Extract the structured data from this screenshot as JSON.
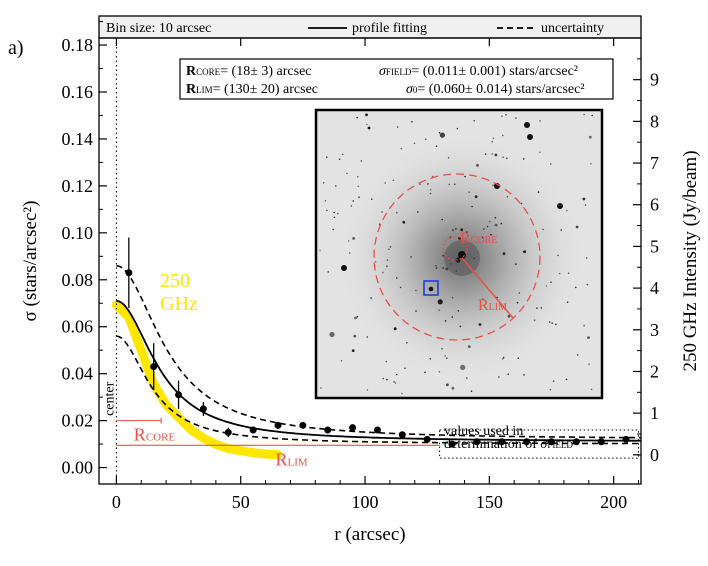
{
  "chart_data": {
    "type": "scatter",
    "panel_label": "a)",
    "xlabel": "r (arcsec)",
    "ylabel_left": "σ (stars/arcsec²)",
    "ylabel_right": "250 GHz Intensity (Jy/beam)",
    "xlim": [
      -7,
      211
    ],
    "ylim_left": [
      -0.007,
      0.183
    ],
    "ylim_right": [
      -0.7,
      10.0
    ],
    "x_ticks": [
      0,
      50,
      100,
      150,
      200
    ],
    "y_ticks_left": [
      0.0,
      0.02,
      0.04,
      0.06,
      0.08,
      0.1,
      0.12,
      0.14,
      0.16,
      0.18
    ],
    "y_ticks_right": [
      0,
      1,
      2,
      3,
      4,
      5,
      6,
      7,
      8,
      9
    ],
    "legend": {
      "bin_size": "Bin size: 10 arcsec",
      "fit_label": "profile fitting",
      "uncertainty_label": "uncertainty"
    },
    "params": {
      "r_core_sym": "R",
      "r_core_sub": "CORE",
      "r_core_val": "= (18± 3) arcsec",
      "r_lim_sym": "R",
      "r_lim_sub": "LIM",
      "r_lim_val": "= (130± 20) arcsec",
      "sigma_field_sym": "σ",
      "sigma_field_sub": "FIELD",
      "sigma_field_val": "= (0.011± 0.001) stars/arcsec²",
      "sigma0_sym": "σ",
      "sigma0_sub": "0",
      "sigma0_val": "= (0.060± 0.014) stars/arcsec²"
    },
    "density_points": [
      {
        "r": 5,
        "sigma": 0.083,
        "err": 0.015
      },
      {
        "r": 15,
        "sigma": 0.043,
        "err": 0.01
      },
      {
        "r": 25,
        "sigma": 0.031,
        "err": 0.006
      },
      {
        "r": 35,
        "sigma": 0.025,
        "err": 0.003
      },
      {
        "r": 45,
        "sigma": 0.015,
        "err": 0.002
      },
      {
        "r": 55,
        "sigma": 0.016,
        "err": 0.0015
      },
      {
        "r": 65,
        "sigma": 0.018,
        "err": 0.0015
      },
      {
        "r": 75,
        "sigma": 0.018,
        "err": 0.0012
      },
      {
        "r": 85,
        "sigma": 0.016,
        "err": 0.001
      },
      {
        "r": 95,
        "sigma": 0.017,
        "err": 0.001
      },
      {
        "r": 105,
        "sigma": 0.016,
        "err": 0.001
      },
      {
        "r": 115,
        "sigma": 0.014,
        "err": 0.001
      },
      {
        "r": 125,
        "sigma": 0.012,
        "err": 0.001
      },
      {
        "r": 135,
        "sigma": 0.01,
        "err": 0.001
      },
      {
        "r": 145,
        "sigma": 0.011,
        "err": 0.001
      },
      {
        "r": 155,
        "sigma": 0.011,
        "err": 0.001
      },
      {
        "r": 165,
        "sigma": 0.011,
        "err": 0.001
      },
      {
        "r": 175,
        "sigma": 0.011,
        "err": 0.001
      },
      {
        "r": 185,
        "sigma": 0.011,
        "err": 0.001
      },
      {
        "r": 195,
        "sigma": 0.011,
        "err": 0.001
      },
      {
        "r": 205,
        "sigma": 0.012,
        "err": 0.001
      }
    ],
    "fit_model": {
      "sigma0": 0.06,
      "r_core": 18,
      "sigma_field": 0.011
    },
    "uncertainty_models": [
      {
        "sigma0": 0.074,
        "r_core": 21,
        "sigma_field": 0.012
      },
      {
        "sigma0": 0.046,
        "r_core": 15,
        "sigma_field": 0.01
      }
    ],
    "intensity_profile_250ghz": {
      "r": [
        0,
        5,
        10,
        15,
        20,
        25,
        30,
        35,
        40,
        45,
        50,
        55,
        60,
        65
      ],
      "intensity_jy_beam": [
        3.6,
        3.3,
        2.5,
        1.7,
        1.2,
        0.9,
        0.6,
        0.4,
        0.25,
        0.15,
        0.1,
        0.05,
        0.02,
        0.0
      ]
    },
    "annotations": {
      "center_label": "center",
      "r_core_marker": {
        "sym": "R",
        "sub": "CORE",
        "r_end": 18
      },
      "r_lim_marker": {
        "sym": "R",
        "sub": "LIM",
        "r_end": 130
      },
      "ghz_label_line1": "250",
      "ghz_label_line2": "GHz",
      "field_box_line1": "values used in",
      "field_box_line2": "determination of ",
      "field_box_sym": "σ",
      "field_box_sub": "FIELD",
      "inset_r_core_sym": "R",
      "inset_r_core_sub": "CORE",
      "inset_r_lim_sym": "R",
      "inset_r_lim_sub": "LIM"
    },
    "colors": {
      "accent_red": "#e8504a",
      "accent_yellow": "#ffe600",
      "inset_box_blue": "#1f3fd6"
    }
  }
}
